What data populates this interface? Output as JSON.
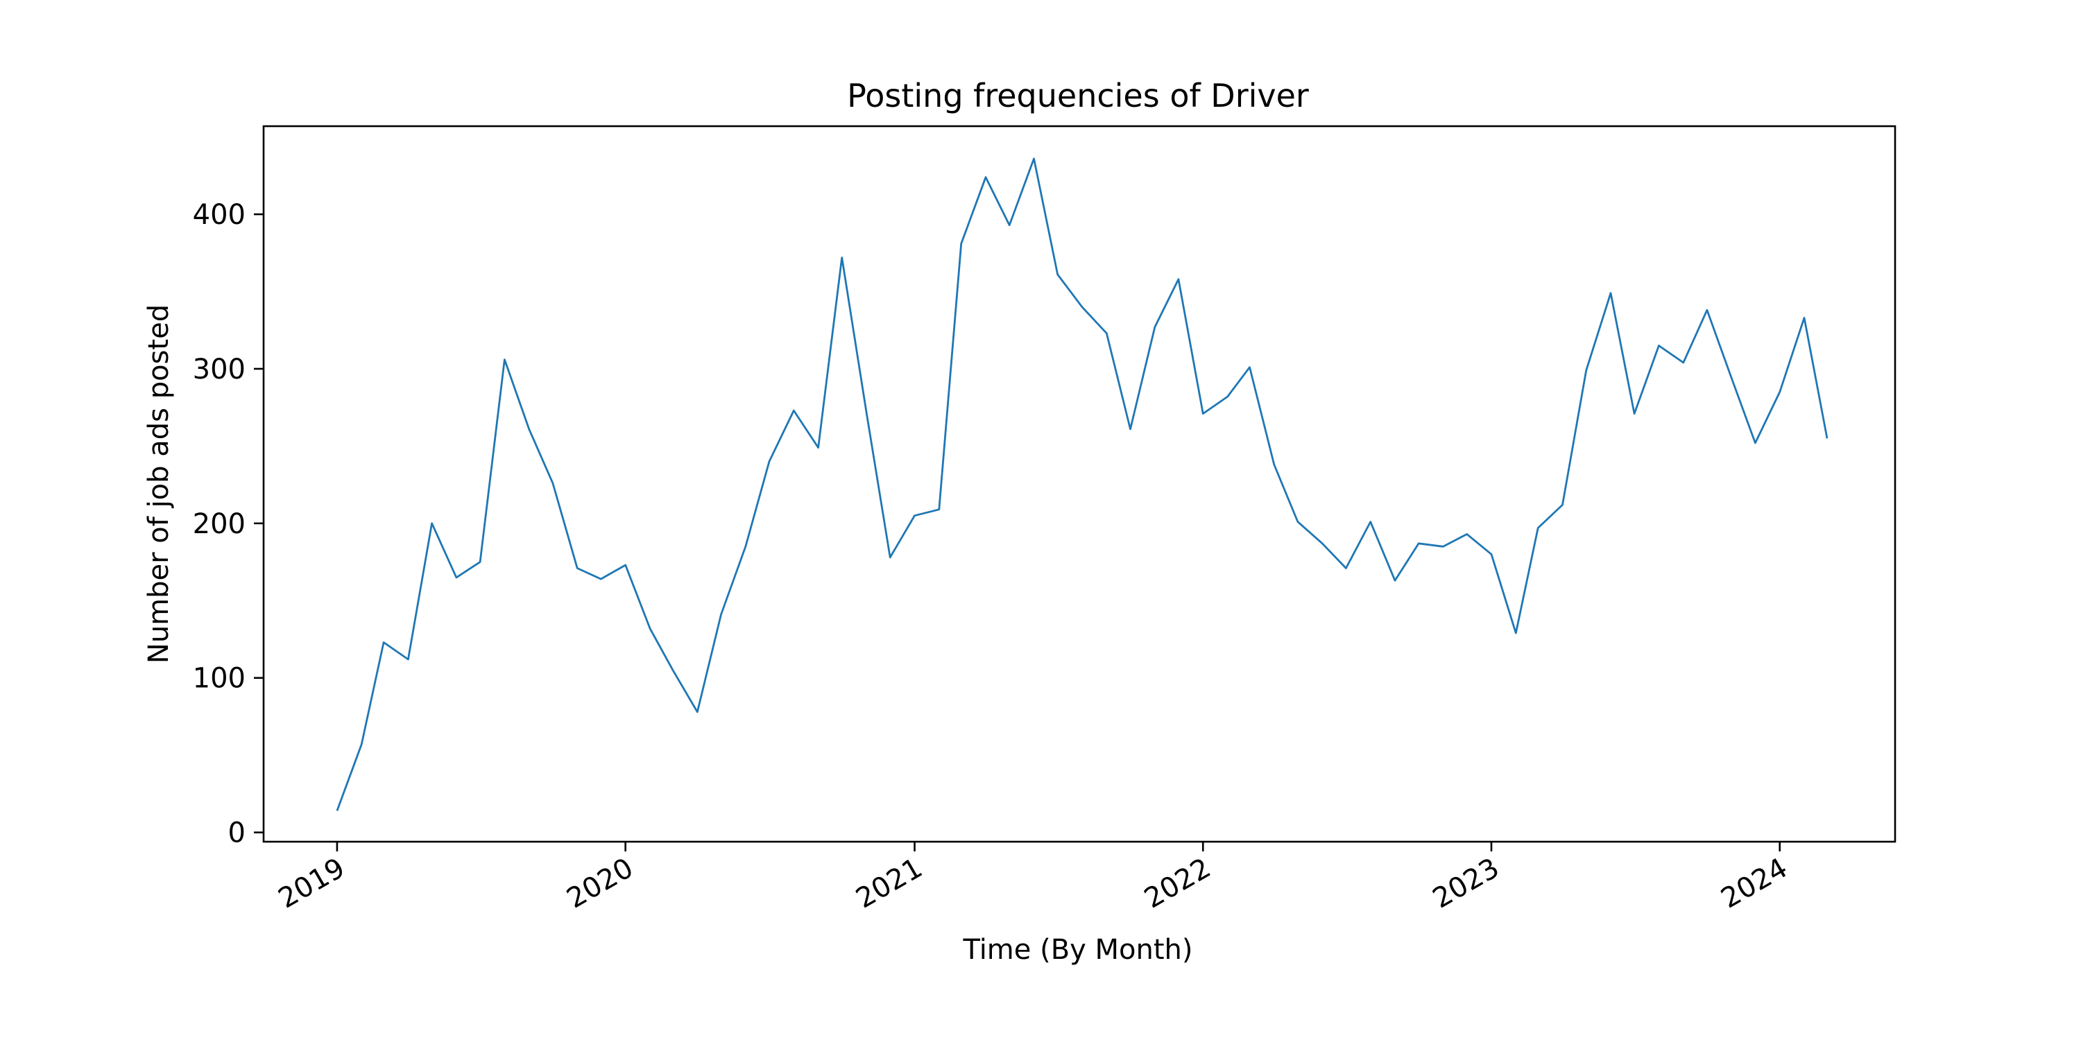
{
  "chart_data": {
    "type": "line",
    "title": "Posting frequencies of Driver",
    "xlabel": "Time (By Month)",
    "ylabel": "Number of job ads posted",
    "x_ticks": [
      "2019",
      "2020",
      "2021",
      "2022",
      "2023",
      "2024"
    ],
    "y_ticks": [
      0,
      100,
      200,
      300,
      400
    ],
    "ylim": [
      -6,
      457
    ],
    "xlim": [
      "2018-09-30",
      "2024-05-26"
    ],
    "grid": false,
    "line_color": "#1f77b4",
    "series": [
      {
        "x": [
          "2019-01",
          "2019-02",
          "2019-03",
          "2019-04",
          "2019-05",
          "2019-06",
          "2019-07",
          "2019-08",
          "2019-09",
          "2019-10",
          "2019-11",
          "2019-12",
          "2020-01",
          "2020-02",
          "2020-03",
          "2020-04",
          "2020-05",
          "2020-06",
          "2020-07",
          "2020-08",
          "2020-09",
          "2020-10",
          "2020-11",
          "2020-12",
          "2021-01",
          "2021-02",
          "2021-03",
          "2021-04",
          "2021-05",
          "2021-06",
          "2021-07",
          "2021-08",
          "2021-09",
          "2021-10",
          "2021-11",
          "2021-12",
          "2022-01",
          "2022-02",
          "2022-03",
          "2022-04",
          "2022-05",
          "2022-06",
          "2022-07",
          "2022-08",
          "2022-09",
          "2022-10",
          "2022-11",
          "2022-12",
          "2023-01",
          "2023-02",
          "2023-03",
          "2023-04",
          "2023-05",
          "2023-06",
          "2023-07",
          "2023-08",
          "2023-09",
          "2023-10",
          "2023-11",
          "2023-12",
          "2024-01",
          "2024-02",
          "2024-03"
        ],
        "y": [
          14,
          57,
          123,
          112,
          200,
          165,
          175,
          306,
          261,
          226,
          171,
          164,
          173,
          132,
          105,
          78,
          141,
          185,
          240,
          273,
          249,
          372,
          272,
          178,
          205,
          209,
          381,
          424,
          393,
          436,
          361,
          340,
          323,
          261,
          327,
          358,
          271,
          282,
          301,
          238,
          201,
          187,
          171,
          201,
          163,
          187,
          185,
          193,
          180,
          129,
          197,
          212,
          299,
          349,
          271,
          315,
          304,
          338,
          294,
          252,
          285,
          333,
          255
        ]
      }
    ]
  }
}
